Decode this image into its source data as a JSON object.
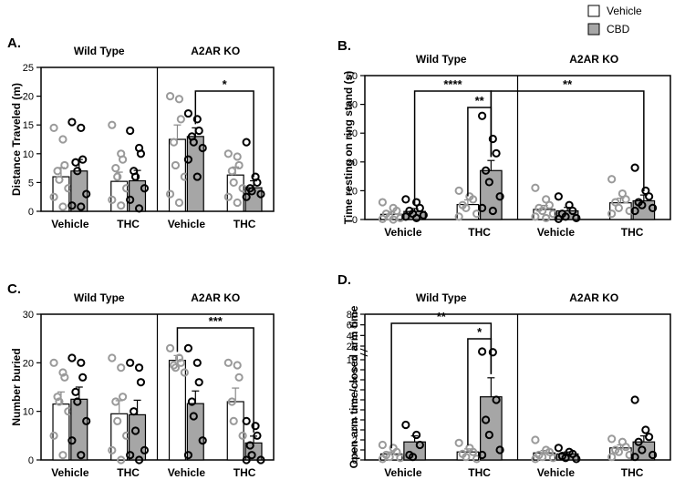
{
  "legend": [
    {
      "label": "Vehicle",
      "fill": "#ffffff"
    },
    {
      "label": "CBD",
      "fill": "#a6a6a6"
    }
  ],
  "colors": {
    "vehicle_bar": "#ffffff",
    "cbd_bar": "#a6a6a6",
    "vehicle_dot": "#9a9a9a",
    "cbd_dot": "#000000"
  },
  "chart_data": [
    {
      "id": "A",
      "panel_label": "A.",
      "type": "bar",
      "ylabel": "Distance Traveled (m)",
      "ylim": [
        0,
        25
      ],
      "yticks": [
        "0",
        "5",
        "10",
        "15",
        "20",
        "25"
      ],
      "groups": [
        "Wild Type",
        "A2AR KO"
      ],
      "categories": [
        "Vehicle",
        "THC",
        "Vehicle",
        "THC"
      ],
      "series": [
        {
          "name": "Vehicle",
          "values": [
            6,
            5.2,
            12.5,
            6.3
          ],
          "sem": [
            1.6,
            1.6,
            2.5,
            1.4
          ],
          "points": [
            [
              14.5,
              12.5,
              8,
              7,
              5.5,
              4,
              2.5,
              0.8
            ],
            [
              15,
              10,
              9,
              7.5,
              6,
              4,
              2,
              1
            ],
            [
              20,
              19.5,
              16,
              12,
              8,
              6,
              3,
              1.5
            ],
            [
              10,
              9.5,
              8,
              7,
              5,
              4,
              2.5,
              1.5
            ]
          ]
        },
        {
          "name": "CBD",
          "values": [
            7,
            5.3,
            13,
            4.1
          ],
          "sem": [
            2,
            1.8,
            1.5,
            1.2
          ],
          "points": [
            [
              15.5,
              14.5,
              9,
              8.5,
              7,
              3,
              1,
              0.8
            ],
            [
              14,
              11,
              10,
              7,
              6,
              4,
              2,
              0.5
            ],
            [
              17,
              16,
              14,
              13,
              12,
              11,
              9,
              6
            ],
            [
              12,
              6,
              5,
              4,
              3.5,
              3,
              2.5
            ]
          ]
        }
      ],
      "annotations": [
        {
          "text": "*",
          "from": "KO Vehicle CBD",
          "to": "KO THC CBD"
        }
      ]
    },
    {
      "id": "B",
      "panel_label": "B.",
      "type": "bar",
      "ylabel": "Time resting on ring stand (s)",
      "ylim": [
        0,
        50
      ],
      "yticks": [
        "0",
        "10",
        "20",
        "30",
        "40",
        "50"
      ],
      "groups": [
        "Wild Type",
        "A2AR KO"
      ],
      "categories": [
        "Vehicle",
        "THC",
        "Vehicle",
        "THC"
      ],
      "series": [
        {
          "name": "Vehicle",
          "values": [
            1.8,
            5.2,
            3.5,
            5.8
          ],
          "sem": [
            0.8,
            1.6,
            1.4,
            1.6
          ],
          "points": [
            [
              6,
              4,
              3,
              2,
              1,
              0.5,
              0.2,
              0
            ],
            [
              10,
              8,
              7,
              5,
              4,
              2,
              1
            ],
            [
              11,
              7,
              5,
              4,
              3,
              2,
              1,
              0.5
            ],
            [
              14,
              9,
              7,
              6,
              4,
              3,
              2
            ]
          ]
        },
        {
          "name": "CBD",
          "values": [
            2.8,
            17,
            3,
            6.5
          ],
          "sem": [
            1,
            3.5,
            1.2,
            2
          ],
          "points": [
            [
              7,
              6,
              4,
              3,
              2,
              1.5,
              1,
              0.5
            ],
            [
              36,
              28,
              23,
              17,
              13,
              8,
              4,
              3
            ],
            [
              8,
              5,
              3,
              2,
              1,
              0.5,
              0.2
            ],
            [
              18,
              10,
              8,
              6,
              5,
              4,
              3
            ]
          ]
        }
      ],
      "annotations": [
        {
          "text": "****",
          "from": "WT Vehicle CBD",
          "to": "WT THC CBD"
        },
        {
          "text": "**",
          "from": "WT THC Vehicle",
          "to": "WT THC CBD"
        },
        {
          "text": "**",
          "from": "WT THC CBD",
          "to": "KO THC CBD"
        }
      ]
    },
    {
      "id": "C",
      "panel_label": "C.",
      "type": "bar",
      "ylabel": "Number buried",
      "ylim": [
        0,
        30
      ],
      "yticks": [
        "0",
        "10",
        "20",
        "30"
      ],
      "groups": [
        "Wild Type",
        "A2AR KO"
      ],
      "categories": [
        "Vehicle",
        "THC",
        "Vehicle",
        "THC"
      ],
      "series": [
        {
          "name": "Vehicle",
          "values": [
            11.5,
            9.5,
            20.5,
            12
          ],
          "sem": [
            2.5,
            2.7,
            1,
            2.8
          ],
          "points": [
            [
              20,
              18,
              17,
              13,
              12,
              10,
              5,
              1
            ],
            [
              21,
              19,
              13,
              12,
              8,
              5,
              2,
              0
            ],
            [
              23,
              21,
              20,
              19.5,
              19,
              18
            ],
            [
              20,
              19.5,
              17,
              12,
              8,
              5
            ]
          ]
        },
        {
          "name": "CBD",
          "values": [
            12.5,
            9.3,
            11.6,
            3.5
          ],
          "sem": [
            2.5,
            3,
            2.6,
            1.4
          ],
          "points": [
            [
              21,
              20,
              17,
              14,
              12,
              8,
              4,
              1
            ],
            [
              20,
              19,
              16,
              10,
              6,
              2,
              1,
              0
            ],
            [
              23,
              20,
              16,
              12,
              9,
              4,
              1
            ],
            [
              8,
              7,
              5,
              3,
              1,
              0,
              0
            ]
          ]
        }
      ],
      "annotations": [
        {
          "text": "***",
          "from": "KO Vehicle Vehicle",
          "to": "KO THC CBD"
        }
      ]
    },
    {
      "id": "D",
      "panel_label": "D.",
      "type": "bar",
      "ylabel": "Open arm time/closed arm time",
      "ylim": [
        0,
        10
      ],
      "yticks": [
        "0",
        "1",
        "2",
        "3",
        "4",
        "5",
        "6",
        "7",
        "8",
        "9",
        "10"
      ],
      "upper_axis": {
        "ylim": [
          20,
          80
        ],
        "yticks": [
          "20",
          "40",
          "60",
          "80"
        ]
      },
      "groups": [
        "Wild Type",
        "A2AR KO"
      ],
      "categories": [
        "Vehicle",
        "THC",
        "Vehicle",
        "THC"
      ],
      "series": [
        {
          "name": "Vehicle",
          "values": [
            0.6,
            0.8,
            0.7,
            1.2
          ],
          "sem": [
            0.2,
            0.3,
            0.25,
            0.3
          ],
          "points": [
            [
              1.5,
              1.2,
              0.8,
              0.5,
              0.3,
              0.2,
              0.1
            ],
            [
              1.7,
              1.2,
              0.8,
              0.6,
              0.3,
              0.1
            ],
            [
              2,
              1,
              0.8,
              0.5,
              0.3,
              0.2,
              0.1
            ],
            [
              2.1,
              1.8,
              1.3,
              1,
              0.8,
              0.5,
              0.3
            ]
          ]
        },
        {
          "name": "CBD",
          "values": [
            1.8,
            6.3,
            0.6,
            1.8
          ],
          "sem": [
            0.6,
            1.9,
            0.2,
            0.6
          ],
          "points": [
            [
              3.5,
              2.5,
              1.5,
              0.5,
              0.3
            ],
            [
              16,
              15.5,
              6,
              4,
              2.5,
              1,
              0.5
            ],
            [
              1.2,
              0.8,
              0.6,
              0.4,
              0.2,
              0.1
            ],
            [
              6,
              3,
              2.3,
              1.8,
              1,
              0.5,
              0.3
            ]
          ]
        }
      ],
      "annotations": [
        {
          "text": "**",
          "from": "WT Vehicle Vehicle",
          "to": "WT THC CBD"
        },
        {
          "text": "*",
          "from": "WT THC Vehicle",
          "to": "WT THC CBD"
        }
      ]
    }
  ]
}
